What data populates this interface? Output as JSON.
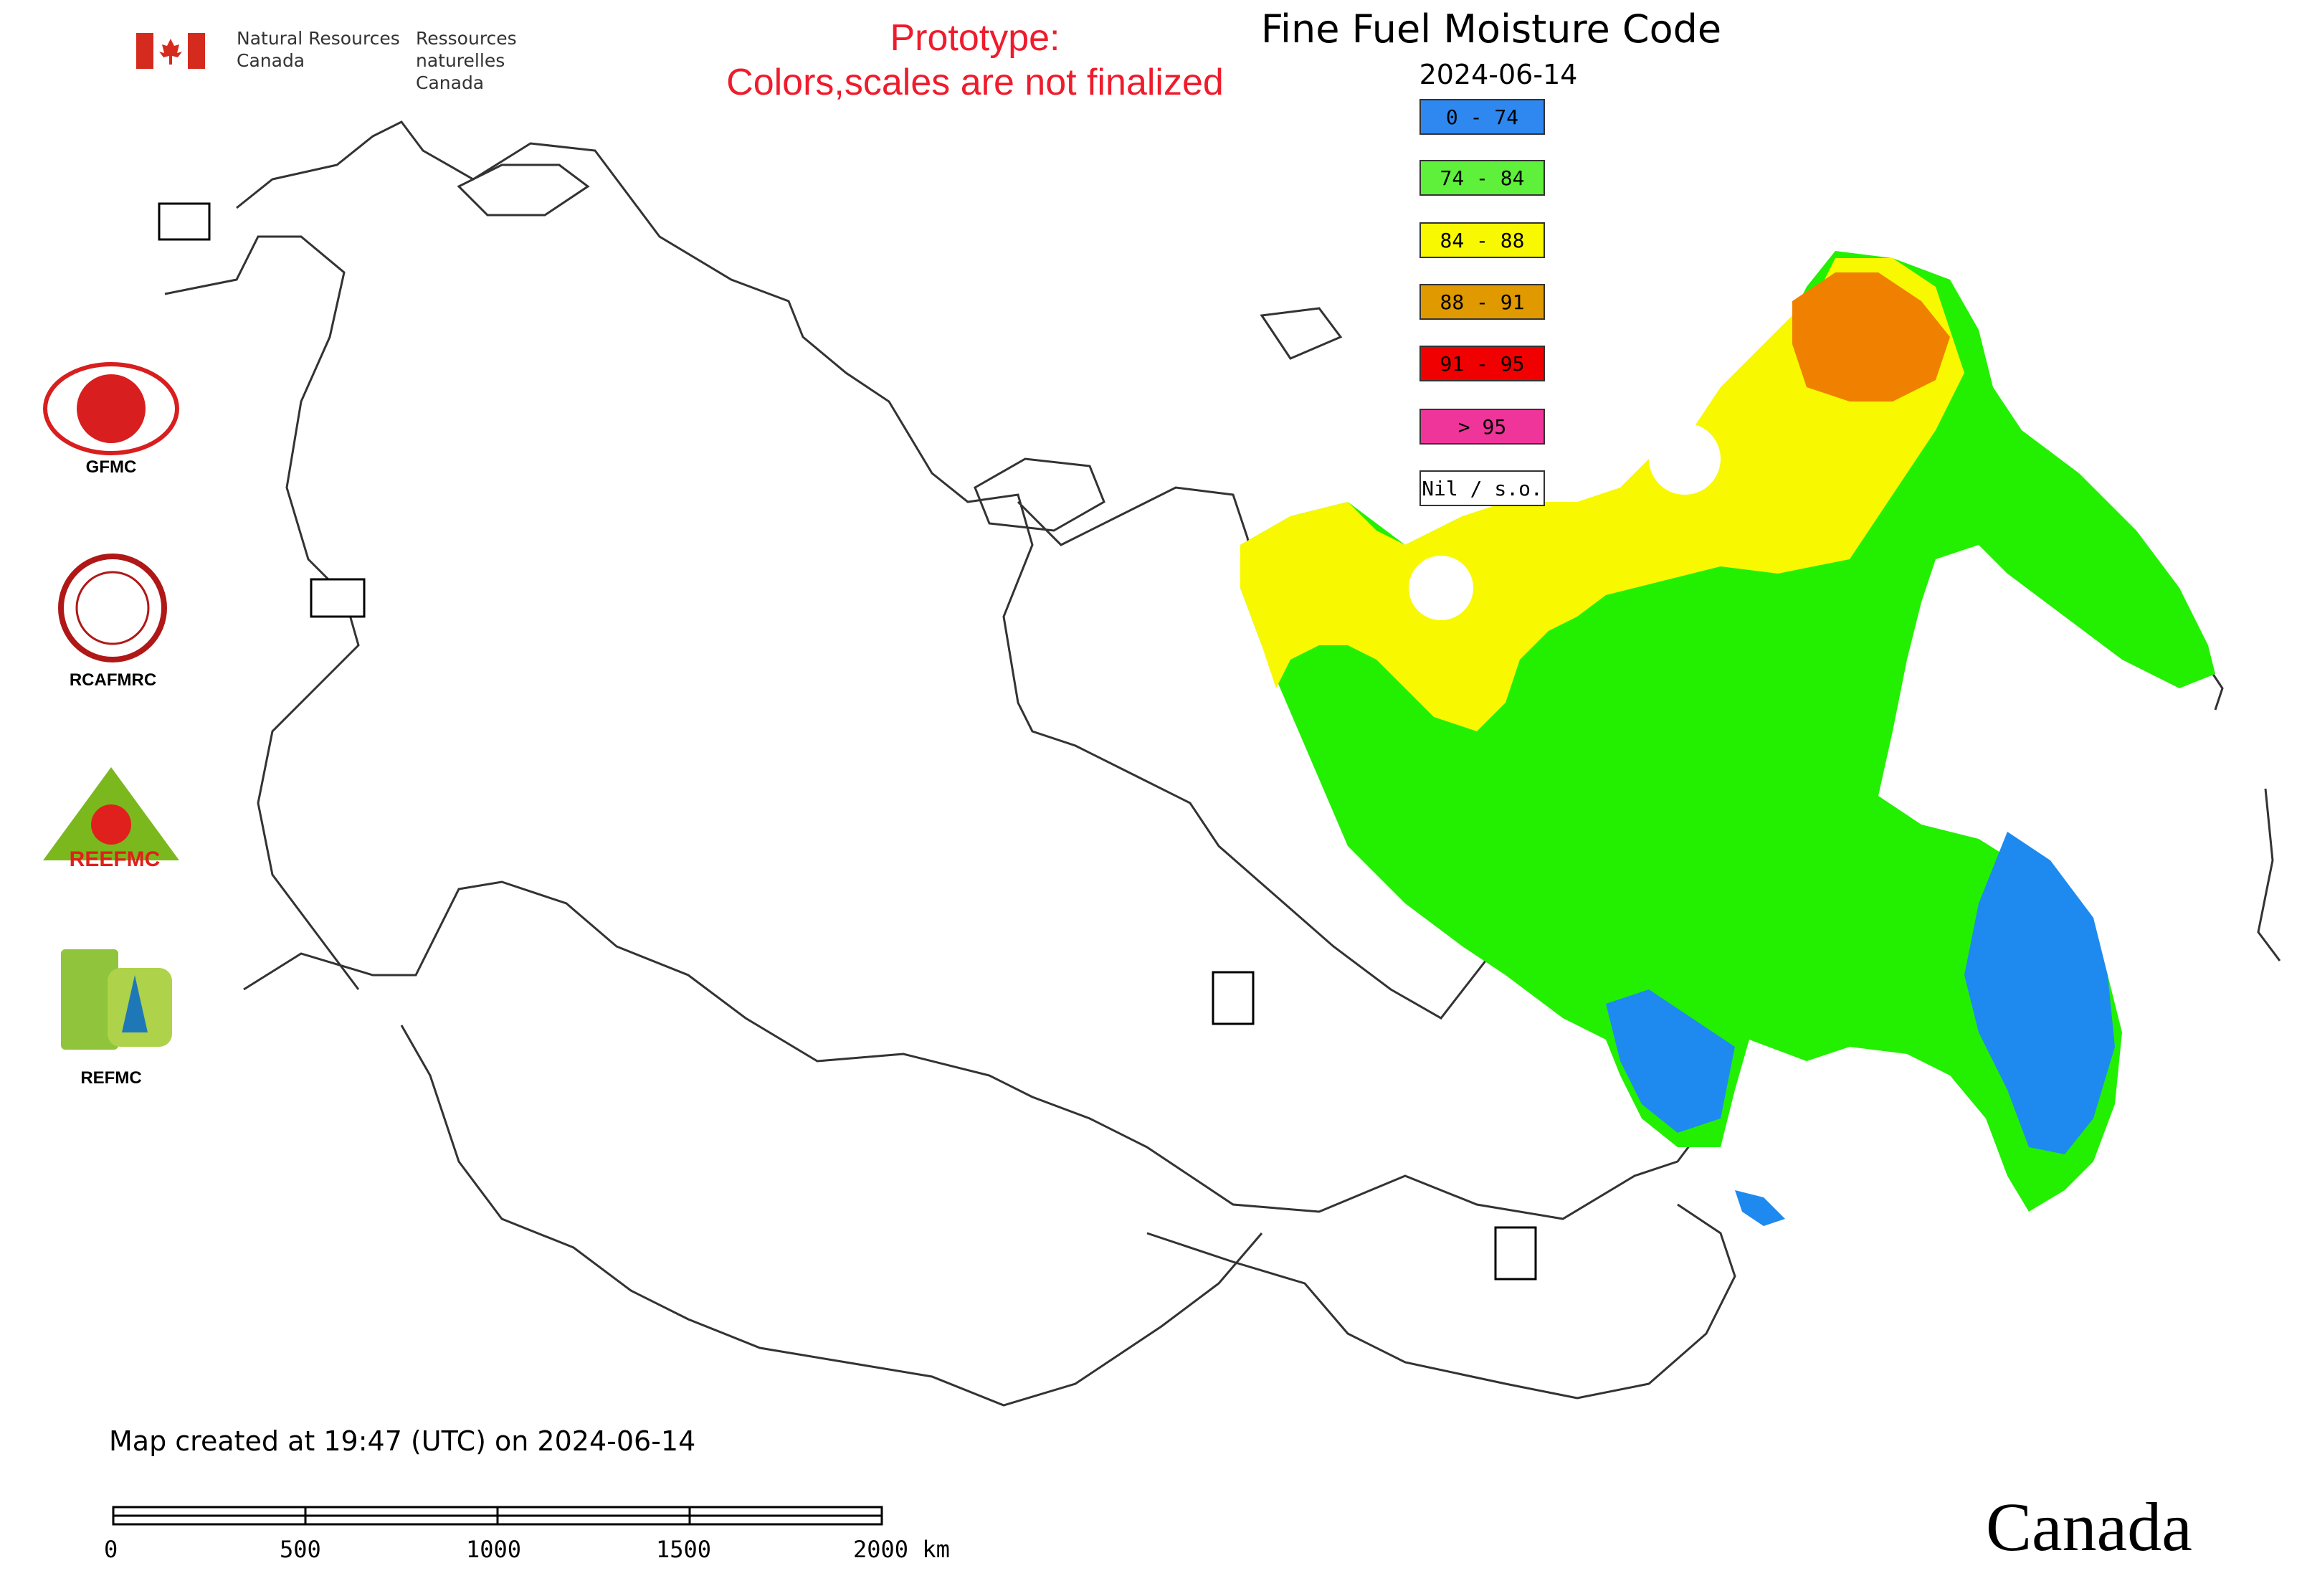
{
  "header": {
    "agency_en": [
      "Natural Resources",
      "Canada"
    ],
    "agency_fr": [
      "Ressources naturelles",
      "Canada"
    ],
    "prototype_notice": [
      "Prototype:",
      "Colors,scales are not finalized"
    ],
    "title": "Fine Fuel Moisture Code",
    "date": "2024-06-14"
  },
  "legend": [
    {
      "label": "0 - 74",
      "color": "#2f88f0"
    },
    {
      "label": "74 - 84",
      "color": "#5ef03a"
    },
    {
      "label": "84 - 88",
      "color": "#f8f800"
    },
    {
      "label": "88 - 91",
      "color": "#e09a00"
    },
    {
      "label": "91 - 95",
      "color": "#f00000"
    },
    {
      "label": "> 95",
      "color": "#f0359a"
    },
    {
      "label": "Nil / s.o.",
      "color": "#ffffff"
    }
  ],
  "logos": [
    {
      "name": "GFMC",
      "icon": "gfmc-logo-icon"
    },
    {
      "name": "RCAFMRC",
      "icon": "rcafmrc-logo-icon"
    },
    {
      "name": "REEFMC",
      "icon": "reefmc-logo-icon"
    },
    {
      "name": "REFMC",
      "icon": "refmc-logo-icon"
    }
  ],
  "map_colors": {
    "green": "#22f000",
    "yellow": "#f8f800",
    "orange": "#f08000",
    "blue": "#1e8af0",
    "outline": "#222222"
  },
  "footer": {
    "created": "Map created at 19:47 (UTC) on 2024-06-14",
    "scale_labels": [
      "0",
      "500",
      "1000",
      "1500",
      "2000 km"
    ],
    "wordmark": "Canada"
  }
}
